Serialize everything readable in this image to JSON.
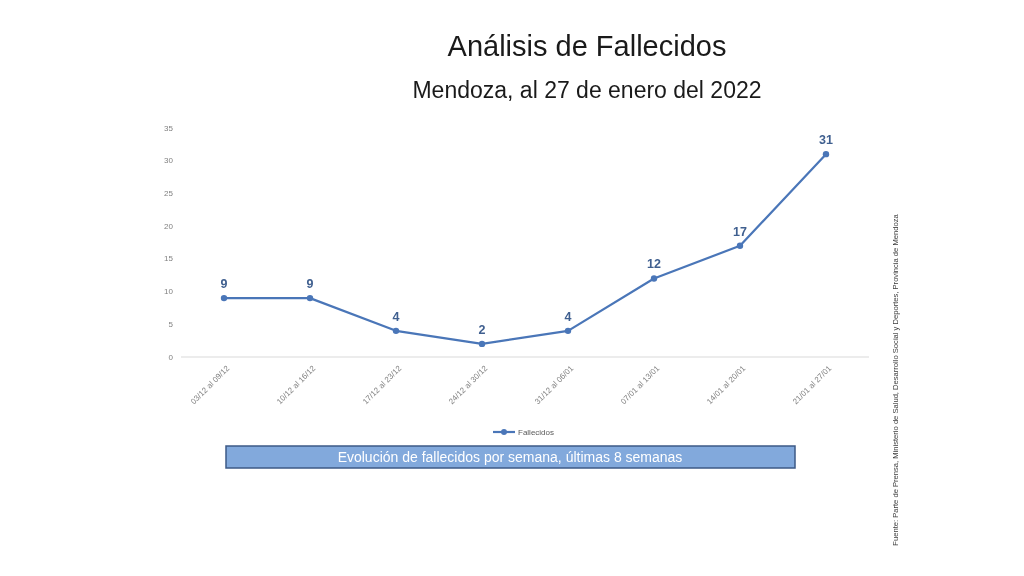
{
  "chart_data": {
    "type": "line",
    "title": "Análisis de Fallecidos",
    "subtitle": "Mendoza, al 27 de enero del 2022",
    "categories": [
      "03/12 al 09/12",
      "10/12 al 16/12",
      "17/12 al 23/12",
      "24/12 al 30/12",
      "31/12 al 06/01",
      "07/01 al 13/01",
      "14/01 al 20/01",
      "21/01 al 27/01"
    ],
    "series": [
      {
        "name": "Fallecidos",
        "color": "#4a76b8",
        "values": [
          9,
          9,
          4,
          2,
          4,
          12,
          17,
          31
        ]
      }
    ],
    "ylim": [
      0,
      35
    ],
    "yticks": [
      0,
      5,
      10,
      15,
      20,
      25,
      30,
      35
    ],
    "legend": "bottom",
    "marker": "circle",
    "line_style": "solid",
    "data_labels": true,
    "annotations": [
      "Evolución de fallecidos por semana, últimas 8 semanas",
      "Fuente: Parte de Prensa, Ministerio de Salud, Desarrollo Social y Deportes, Provincia de Mendoza"
    ]
  }
}
